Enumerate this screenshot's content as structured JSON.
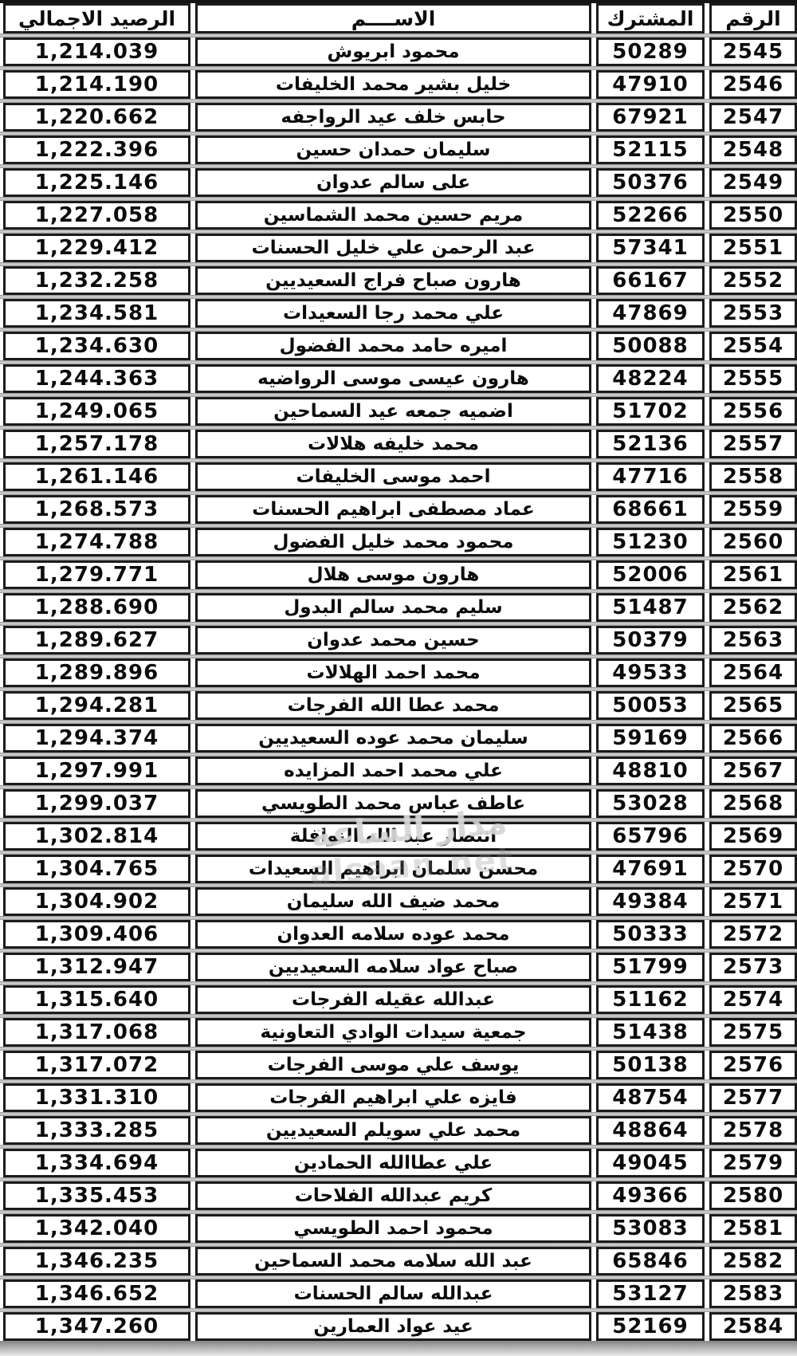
{
  "table": {
    "headers": {
      "number": "الرقم",
      "subscriber": "المشترك",
      "name": "الاســــم",
      "balance": "الرصيد الاجمالي"
    },
    "rows": [
      {
        "number": "2545",
        "subscriber": "50289",
        "name": "محمود ابريوش",
        "balance": "1,214.039"
      },
      {
        "number": "2546",
        "subscriber": "47910",
        "name": "خليل بشير محمد الخليفات",
        "balance": "1,214.190"
      },
      {
        "number": "2547",
        "subscriber": "67921",
        "name": "حابس خلف عيد الرواجفه",
        "balance": "1,220.662"
      },
      {
        "number": "2548",
        "subscriber": "52115",
        "name": "سليمان حمدان حسين",
        "balance": "1,222.396"
      },
      {
        "number": "2549",
        "subscriber": "50376",
        "name": "على سالم عدوان",
        "balance": "1,225.146"
      },
      {
        "number": "2550",
        "subscriber": "52266",
        "name": "مريم حسين محمد الشماسين",
        "balance": "1,227.058"
      },
      {
        "number": "2551",
        "subscriber": "57341",
        "name": "عبد الرحمن علي خليل الحسنات",
        "balance": "1,229.412"
      },
      {
        "number": "2552",
        "subscriber": "66167",
        "name": "هارون صباح فراج السعيديين",
        "balance": "1,232.258"
      },
      {
        "number": "2553",
        "subscriber": "47869",
        "name": "علي محمد رجا السعيدات",
        "balance": "1,234.581"
      },
      {
        "number": "2554",
        "subscriber": "50088",
        "name": "اميره حامد محمد الفضول",
        "balance": "1,234.630"
      },
      {
        "number": "2555",
        "subscriber": "48224",
        "name": "هارون عيسى موسى الرواضيه",
        "balance": "1,244.363"
      },
      {
        "number": "2556",
        "subscriber": "51702",
        "name": "اضميه جمعه عيد السماحين",
        "balance": "1,249.065"
      },
      {
        "number": "2557",
        "subscriber": "52136",
        "name": "محمد خليفه هلالات",
        "balance": "1,257.178"
      },
      {
        "number": "2558",
        "subscriber": "47716",
        "name": "احمد موسى الخليفات",
        "balance": "1,261.146"
      },
      {
        "number": "2559",
        "subscriber": "68661",
        "name": "عماد مصطفى ابراهيم الحسنات",
        "balance": "1,268.573"
      },
      {
        "number": "2560",
        "subscriber": "51230",
        "name": "محمود محمد خليل الفضول",
        "balance": "1,274.788"
      },
      {
        "number": "2561",
        "subscriber": "52006",
        "name": "هارون موسى هلال",
        "balance": "1,279.771"
      },
      {
        "number": "2562",
        "subscriber": "51487",
        "name": "سليم محمد سالم البدول",
        "balance": "1,288.690"
      },
      {
        "number": "2563",
        "subscriber": "50379",
        "name": "حسين محمد عدوان",
        "balance": "1,289.627"
      },
      {
        "number": "2564",
        "subscriber": "49533",
        "name": "محمد احمد الهلالات",
        "balance": "1,289.896"
      },
      {
        "number": "2565",
        "subscriber": "50053",
        "name": "محمد عطا الله الفرجات",
        "balance": "1,294.281"
      },
      {
        "number": "2566",
        "subscriber": "59169",
        "name": "سليمان محمد عوده السعيديين",
        "balance": "1,294.374"
      },
      {
        "number": "2567",
        "subscriber": "48810",
        "name": "علي محمد احمد المزايده",
        "balance": "1,297.991"
      },
      {
        "number": "2568",
        "subscriber": "53028",
        "name": "عاطف عباس محمد الطويسي",
        "balance": "1,299.037"
      },
      {
        "number": "2569",
        "subscriber": "65796",
        "name": "انتصار عبد الله النوافلة",
        "balance": "1,302.814"
      },
      {
        "number": "2570",
        "subscriber": "47691",
        "name": "محسن سلمان ابراهيم السعيدات",
        "balance": "1,304.765"
      },
      {
        "number": "2571",
        "subscriber": "49384",
        "name": "محمد ضيف الله سليمان",
        "balance": "1,304.902"
      },
      {
        "number": "2572",
        "subscriber": "50333",
        "name": "محمد عوده سلامه العدوان",
        "balance": "1,309.406"
      },
      {
        "number": "2573",
        "subscriber": "51799",
        "name": "صباح عواد سلامه السعيديين",
        "balance": "1,312.947"
      },
      {
        "number": "2574",
        "subscriber": "51162",
        "name": "عبدالله عقيله الفرجات",
        "balance": "1,315.640"
      },
      {
        "number": "2575",
        "subscriber": "51438",
        "name": "جمعية سيدات الوادي التعاونية",
        "balance": "1,317.068"
      },
      {
        "number": "2576",
        "subscriber": "50138",
        "name": "يوسف علي موسى الفرجات",
        "balance": "1,317.072"
      },
      {
        "number": "2577",
        "subscriber": "48754",
        "name": "فايزه علي ابراهيم الفرجات",
        "balance": "1,331.310"
      },
      {
        "number": "2578",
        "subscriber": "48864",
        "name": "محمد علي سويلم السعيديين",
        "balance": "1,333.285"
      },
      {
        "number": "2579",
        "subscriber": "49045",
        "name": "علي عطاالله الحمادين",
        "balance": "1,334.694"
      },
      {
        "number": "2580",
        "subscriber": "49366",
        "name": "كريم عبدالله الفلاحات",
        "balance": "1,335.453"
      },
      {
        "number": "2581",
        "subscriber": "53083",
        "name": "محمود احمد الطويسي",
        "balance": "1,342.040"
      },
      {
        "number": "2582",
        "subscriber": "65846",
        "name": "عبد الله سلامه محمد السماحين",
        "balance": "1,346.235"
      },
      {
        "number": "2583",
        "subscriber": "53127",
        "name": "عبدالله سالم الحسنات",
        "balance": "1,346.652"
      },
      {
        "number": "2584",
        "subscriber": "52169",
        "name": "عيد عواد العمارين",
        "balance": "1,347.260"
      }
    ]
  },
  "watermark": {
    "line1": "مدار الساعة",
    "line2": "alsaan.net"
  },
  "colors": {
    "border": "#1b1b1b",
    "row_gap": "#9a9a9a",
    "cell_bg": "#ffffff",
    "text": "#0c0c0c"
  }
}
